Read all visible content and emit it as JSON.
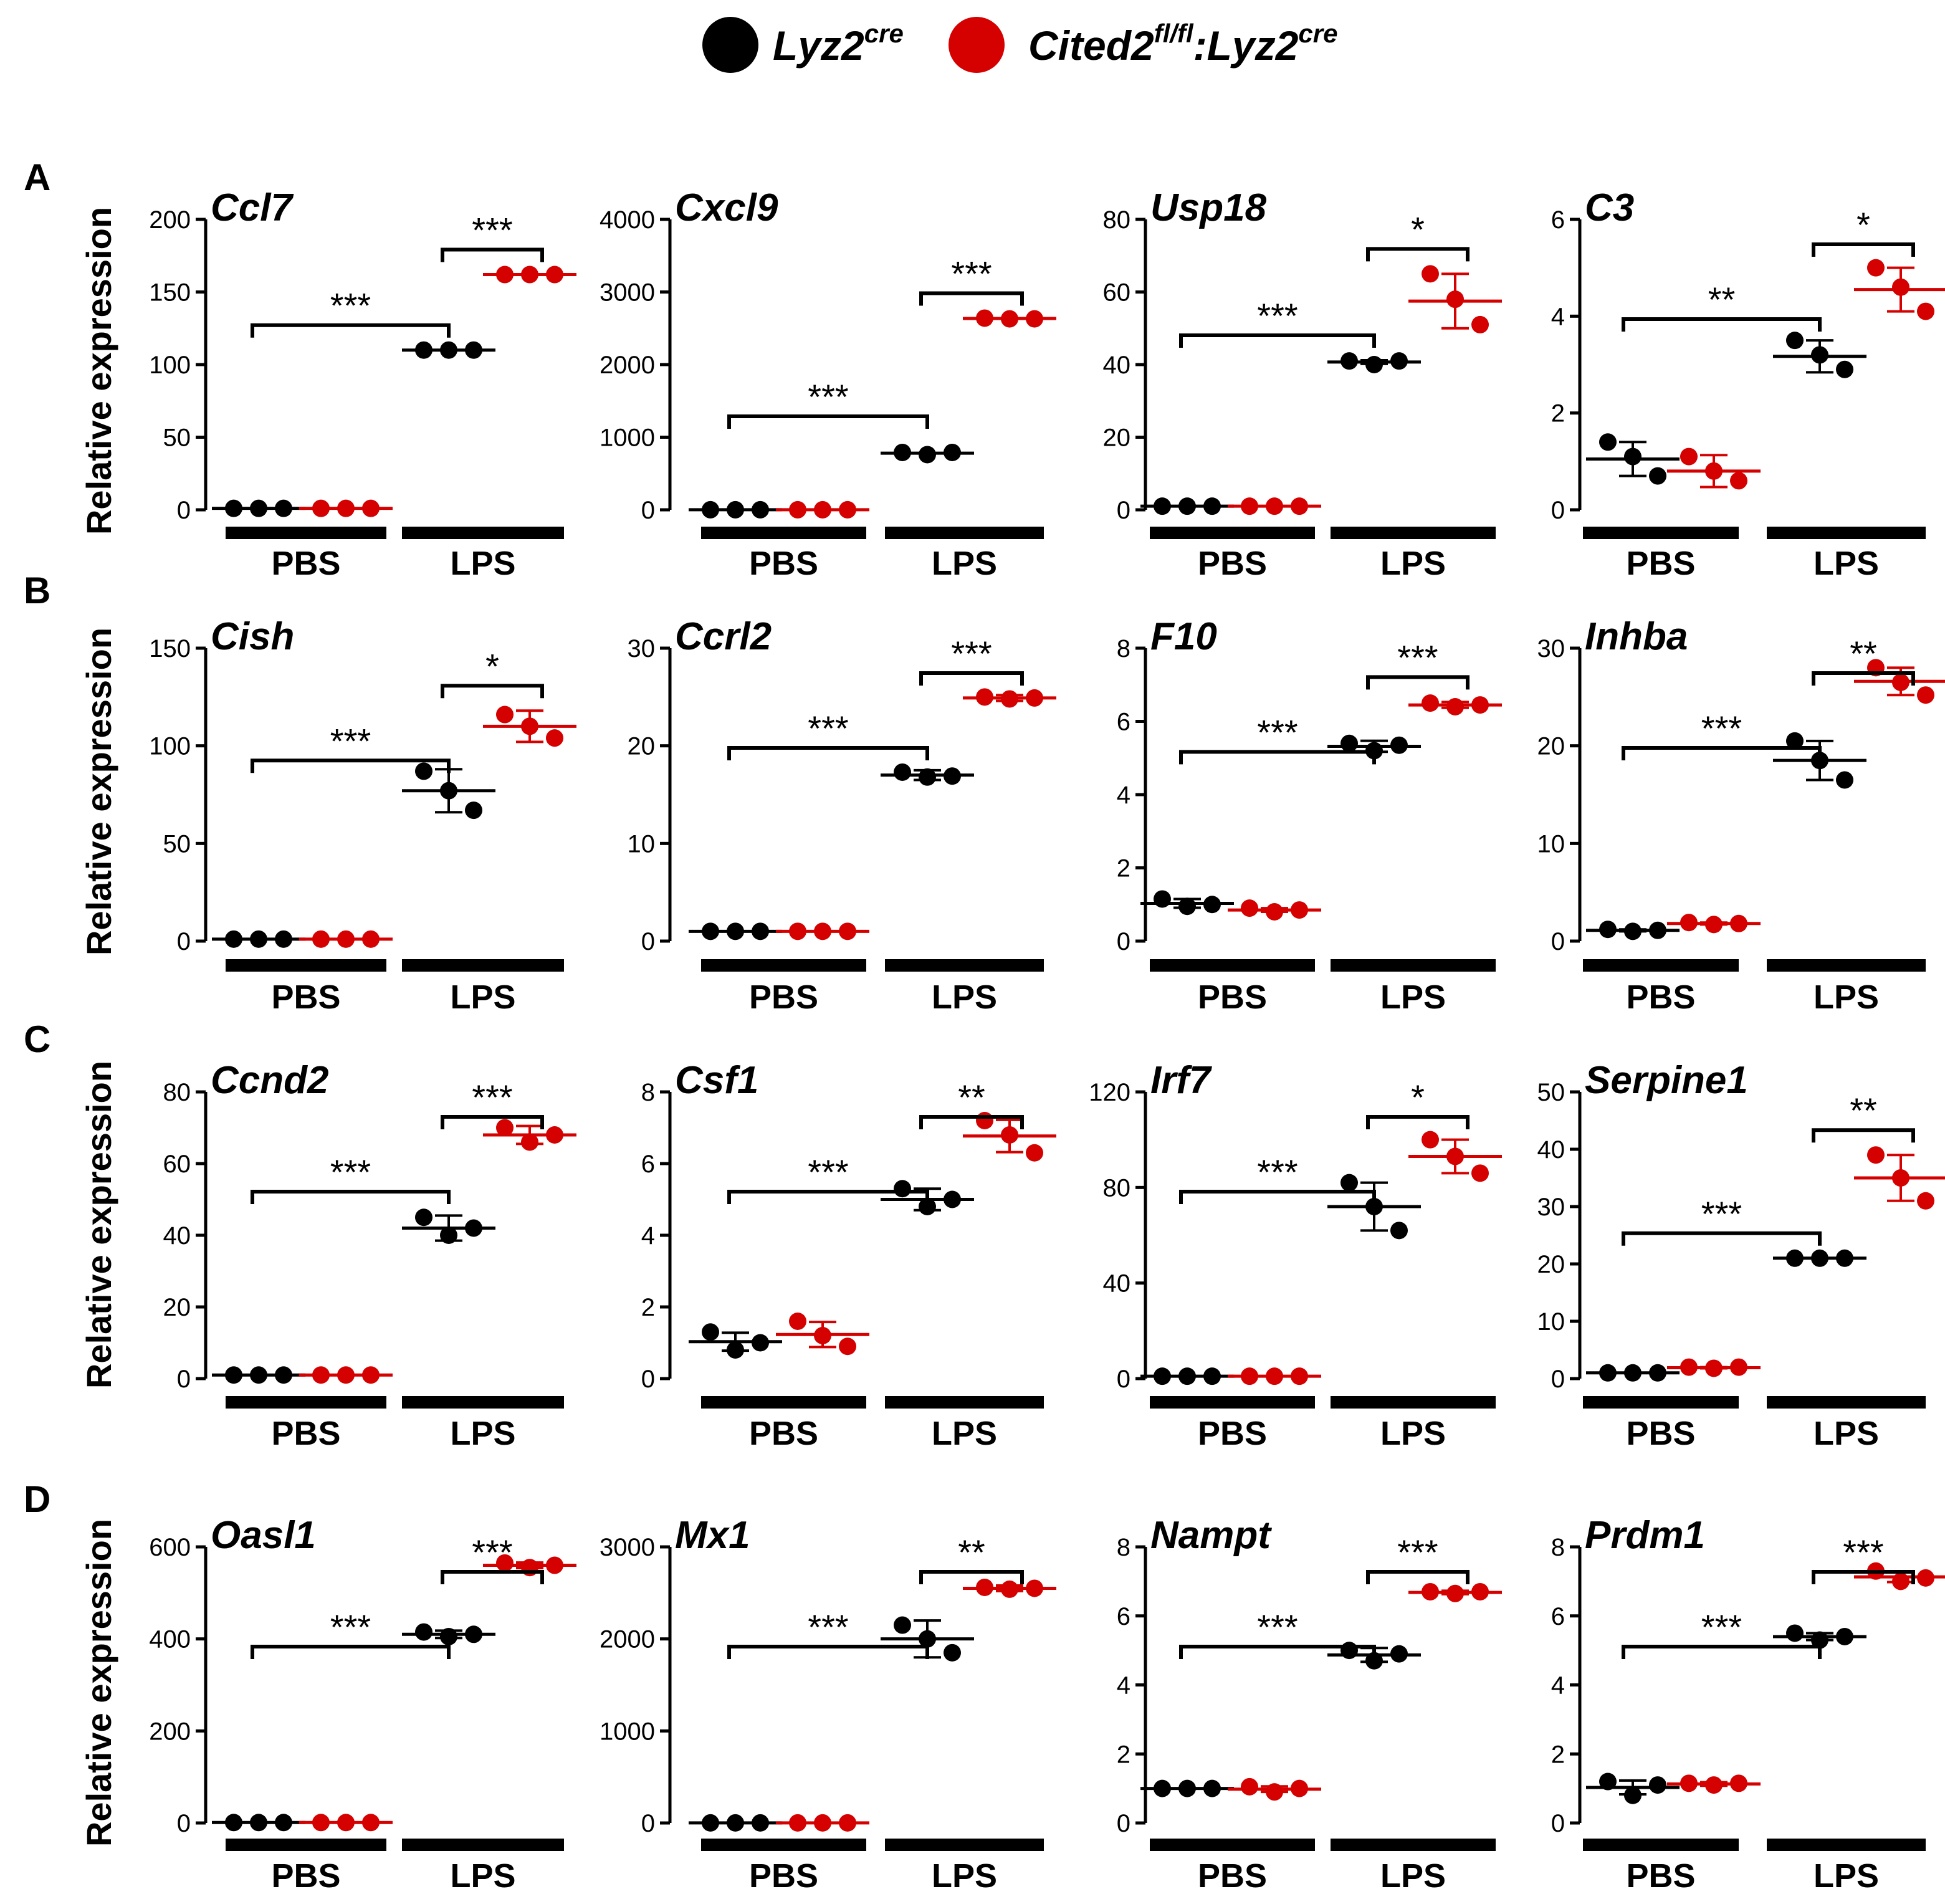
{
  "colors": {
    "wt": "#000000",
    "ko": "#d50000"
  },
  "legend": {
    "entries": [
      {
        "group": "wt",
        "base": "Lyz2",
        "sup": "cre",
        "suffix": "",
        "suffix_sup": ""
      },
      {
        "group": "ko",
        "base": "Cited2",
        "sup": "fl/fl",
        "suffix": ":Lyz2",
        "suffix_sup": "cre"
      }
    ]
  },
  "y_label": "Relative expression",
  "group_labels": [
    "PBS",
    "LPS"
  ],
  "row_labels": [
    "A",
    "B",
    "C",
    "D"
  ],
  "chart_data": [
    {
      "type": "scatter",
      "gene": "Ccl7",
      "ylim": [
        0,
        200
      ],
      "ticks": [
        0,
        50,
        100,
        150,
        200
      ],
      "points": {
        "PBS_wt": [
          1,
          1,
          1
        ],
        "PBS_ko": [
          1,
          1,
          1
        ],
        "LPS_wt": [
          110,
          110,
          110
        ],
        "LPS_ko": [
          162,
          162,
          162
        ]
      },
      "means": {
        "PBS_wt": 1,
        "PBS_ko": 1,
        "LPS_wt": 110,
        "LPS_ko": 162
      },
      "sd": {
        "PBS_wt": 0,
        "PBS_ko": 0,
        "LPS_wt": 0,
        "LPS_ko": 0
      },
      "sig": {
        "between": "***",
        "within": "***"
      }
    },
    {
      "type": "scatter",
      "gene": "Cxcl9",
      "ylim": [
        0,
        4000
      ],
      "ticks": [
        0,
        1000,
        2000,
        3000,
        4000
      ],
      "points": {
        "PBS_wt": [
          1,
          1,
          1
        ],
        "PBS_ko": [
          1,
          1,
          1
        ],
        "LPS_wt": [
          790,
          760,
          790
        ],
        "LPS_ko": [
          2640,
          2630,
          2630
        ]
      },
      "means": {
        "PBS_wt": 1,
        "PBS_ko": 1,
        "LPS_wt": 780,
        "LPS_ko": 2635
      },
      "sd": {
        "PBS_wt": 0,
        "PBS_ko": 0,
        "LPS_wt": 0,
        "LPS_ko": 0
      },
      "sig": {
        "between": "***",
        "within": "***"
      }
    },
    {
      "type": "scatter",
      "gene": "Usp18",
      "ylim": [
        0,
        80
      ],
      "ticks": [
        0,
        20,
        40,
        60,
        80
      ],
      "points": {
        "PBS_wt": [
          1,
          1,
          1
        ],
        "PBS_ko": [
          1,
          1,
          1
        ],
        "LPS_wt": [
          41,
          40,
          41
        ],
        "LPS_ko": [
          65,
          58,
          51
        ]
      },
      "means": {
        "PBS_wt": 1,
        "PBS_ko": 1,
        "LPS_wt": 40.7,
        "LPS_ko": 57.5
      },
      "sd": {
        "PBS_wt": 0,
        "PBS_ko": 0,
        "LPS_wt": 0.5,
        "LPS_ko": 7.5
      },
      "sig": {
        "between": "***",
        "within": "*"
      }
    },
    {
      "type": "scatter",
      "gene": "C3",
      "ylim": [
        0,
        6
      ],
      "ticks": [
        0,
        2,
        4,
        6
      ],
      "points": {
        "PBS_wt": [
          1.4,
          1.1,
          0.7
        ],
        "PBS_ko": [
          1.1,
          0.8,
          0.6
        ],
        "LPS_wt": [
          3.5,
          3.2,
          2.9
        ],
        "LPS_ko": [
          5.0,
          4.6,
          4.1
        ]
      },
      "means": {
        "PBS_wt": 1.05,
        "PBS_ko": 0.8,
        "LPS_wt": 3.17,
        "LPS_ko": 4.55
      },
      "sd": {
        "PBS_wt": 0.35,
        "PBS_ko": 0.33,
        "LPS_wt": 0.33,
        "LPS_ko": 0.45
      },
      "sig": {
        "between": "**",
        "within": "*"
      }
    },
    {
      "type": "scatter",
      "gene": "Cish",
      "ylim": [
        0,
        150
      ],
      "ticks": [
        0,
        50,
        100,
        150
      ],
      "points": {
        "PBS_wt": [
          1,
          1,
          1
        ],
        "PBS_ko": [
          1,
          1,
          1
        ],
        "LPS_wt": [
          87,
          77,
          67
        ],
        "LPS_ko": [
          116,
          110,
          104
        ]
      },
      "means": {
        "PBS_wt": 1,
        "PBS_ko": 1,
        "LPS_wt": 77,
        "LPS_ko": 110
      },
      "sd": {
        "PBS_wt": 0,
        "PBS_ko": 0,
        "LPS_wt": 11,
        "LPS_ko": 8
      },
      "sig": {
        "between": "***",
        "within": "*"
      }
    },
    {
      "type": "scatter",
      "gene": "Ccrl2",
      "ylim": [
        0,
        30
      ],
      "ticks": [
        0,
        10,
        20,
        30
      ],
      "points": {
        "PBS_wt": [
          1,
          1,
          1
        ],
        "PBS_ko": [
          1,
          1,
          1
        ],
        "LPS_wt": [
          17.3,
          16.8,
          16.9
        ],
        "LPS_ko": [
          25,
          24.8,
          24.9
        ]
      },
      "means": {
        "PBS_wt": 1,
        "PBS_ko": 1,
        "LPS_wt": 17,
        "LPS_ko": 24.9
      },
      "sd": {
        "PBS_wt": 0,
        "PBS_ko": 0,
        "LPS_wt": 0.5,
        "LPS_ko": 0.3
      },
      "sig": {
        "between": "***",
        "within": "***"
      }
    },
    {
      "type": "scatter",
      "gene": "F10",
      "ylim": [
        0,
        8
      ],
      "ticks": [
        0,
        2,
        4,
        6,
        8
      ],
      "points": {
        "PBS_wt": [
          1.15,
          0.95,
          1.0
        ],
        "PBS_ko": [
          0.9,
          0.8,
          0.85
        ],
        "LPS_wt": [
          5.4,
          5.2,
          5.35
        ],
        "LPS_ko": [
          6.5,
          6.4,
          6.45
        ]
      },
      "means": {
        "PBS_wt": 1.03,
        "PBS_ko": 0.85,
        "LPS_wt": 5.32,
        "LPS_ko": 6.45
      },
      "sd": {
        "PBS_wt": 0.12,
        "PBS_ko": 0.05,
        "LPS_wt": 0.15,
        "LPS_ko": 0.08
      },
      "sig": {
        "between": "***",
        "within": "***"
      }
    },
    {
      "type": "scatter",
      "gene": "Inhba",
      "ylim": [
        0,
        30
      ],
      "ticks": [
        0,
        10,
        20,
        30
      ],
      "points": {
        "PBS_wt": [
          1.2,
          1.0,
          1.1
        ],
        "PBS_ko": [
          1.9,
          1.7,
          1.8
        ],
        "LPS_wt": [
          20.5,
          18.5,
          16.5
        ],
        "LPS_ko": [
          28,
          26.5,
          25.2
        ]
      },
      "means": {
        "PBS_wt": 1.1,
        "PBS_ko": 1.8,
        "LPS_wt": 18.5,
        "LPS_ko": 26.6
      },
      "sd": {
        "PBS_wt": 0.1,
        "PBS_ko": 0.1,
        "LPS_wt": 2,
        "LPS_ko": 1.4
      },
      "sig": {
        "between": "***",
        "within": "**"
      }
    },
    {
      "type": "scatter",
      "gene": "Ccnd2",
      "ylim": [
        0,
        80
      ],
      "ticks": [
        0,
        20,
        40,
        60,
        80
      ],
      "points": {
        "PBS_wt": [
          1,
          1,
          1
        ],
        "PBS_ko": [
          1,
          1,
          1
        ],
        "LPS_wt": [
          45,
          40,
          42
        ],
        "LPS_ko": [
          70,
          66,
          68
        ]
      },
      "means": {
        "PBS_wt": 1,
        "PBS_ko": 1,
        "LPS_wt": 42,
        "LPS_ko": 68
      },
      "sd": {
        "PBS_wt": 0,
        "PBS_ko": 0,
        "LPS_wt": 3.5,
        "LPS_ko": 2.5
      },
      "sig": {
        "between": "***",
        "within": "***"
      }
    },
    {
      "type": "scatter",
      "gene": "Csf1",
      "ylim": [
        0,
        8
      ],
      "ticks": [
        0,
        2,
        4,
        6,
        8
      ],
      "points": {
        "PBS_wt": [
          1.3,
          0.8,
          1.0
        ],
        "PBS_ko": [
          1.6,
          1.2,
          0.9
        ],
        "LPS_wt": [
          5.3,
          4.8,
          5.0
        ],
        "LPS_ko": [
          7.2,
          6.8,
          6.3
        ]
      },
      "means": {
        "PBS_wt": 1.03,
        "PBS_ko": 1.23,
        "LPS_wt": 5.0,
        "LPS_ko": 6.77
      },
      "sd": {
        "PBS_wt": 0.25,
        "PBS_ko": 0.35,
        "LPS_wt": 0.3,
        "LPS_ko": 0.45
      },
      "sig": {
        "between": "***",
        "within": "**"
      }
    },
    {
      "type": "scatter",
      "gene": "Irf7",
      "ylim": [
        0,
        120
      ],
      "ticks": [
        0,
        40,
        80,
        120
      ],
      "points": {
        "PBS_wt": [
          1,
          1,
          1
        ],
        "PBS_ko": [
          1,
          1,
          1
        ],
        "LPS_wt": [
          82,
          72,
          62
        ],
        "LPS_ko": [
          100,
          93,
          86
        ]
      },
      "means": {
        "PBS_wt": 1,
        "PBS_ko": 1,
        "LPS_wt": 72,
        "LPS_ko": 93
      },
      "sd": {
        "PBS_wt": 0,
        "PBS_ko": 0,
        "LPS_wt": 10,
        "LPS_ko": 7
      },
      "sig": {
        "between": "***",
        "within": "*"
      }
    },
    {
      "type": "scatter",
      "gene": "Serpine1",
      "ylim": [
        0,
        50
      ],
      "ticks": [
        0,
        10,
        20,
        30,
        40,
        50
      ],
      "points": {
        "PBS_wt": [
          1,
          1,
          1
        ],
        "PBS_ko": [
          2,
          1.8,
          2
        ],
        "LPS_wt": [
          21,
          21,
          21
        ],
        "LPS_ko": [
          39,
          35,
          31
        ]
      },
      "means": {
        "PBS_wt": 1,
        "PBS_ko": 1.9,
        "LPS_wt": 21,
        "LPS_ko": 35
      },
      "sd": {
        "PBS_wt": 0,
        "PBS_ko": 0.1,
        "LPS_wt": 0,
        "LPS_ko": 4
      },
      "sig": {
        "between": "***",
        "within": "**"
      }
    },
    {
      "type": "scatter",
      "gene": "Oasl1",
      "ylim": [
        0,
        600
      ],
      "ticks": [
        0,
        200,
        400,
        600
      ],
      "points": {
        "PBS_wt": [
          1,
          1,
          1
        ],
        "PBS_ko": [
          1,
          1,
          1
        ],
        "LPS_wt": [
          415,
          405,
          410
        ],
        "LPS_ko": [
          565,
          555,
          560
        ]
      },
      "means": {
        "PBS_wt": 1,
        "PBS_ko": 1,
        "LPS_wt": 410,
        "LPS_ko": 560
      },
      "sd": {
        "PBS_wt": 0,
        "PBS_ko": 0,
        "LPS_wt": 8,
        "LPS_ko": 6
      },
      "sig": {
        "between": "***",
        "within": "***"
      }
    },
    {
      "type": "scatter",
      "gene": "Mx1",
      "ylim": [
        0,
        3000
      ],
      "ticks": [
        0,
        1000,
        2000,
        3000
      ],
      "points": {
        "PBS_wt": [
          1,
          1,
          1
        ],
        "PBS_ko": [
          1,
          1,
          1
        ],
        "LPS_wt": [
          2150,
          2000,
          1850
        ],
        "LPS_ko": [
          2560,
          2540,
          2550
        ]
      },
      "means": {
        "PBS_wt": 1,
        "PBS_ko": 1,
        "LPS_wt": 2000,
        "LPS_ko": 2550
      },
      "sd": {
        "PBS_wt": 0,
        "PBS_ko": 0,
        "LPS_wt": 200,
        "LPS_ko": 30
      },
      "sig": {
        "between": "***",
        "within": "**"
      }
    },
    {
      "type": "scatter",
      "gene": "Nampt",
      "ylim": [
        0,
        8
      ],
      "ticks": [
        0,
        2,
        4,
        6,
        8
      ],
      "points": {
        "PBS_wt": [
          1.0,
          1.0,
          1.0
        ],
        "PBS_ko": [
          1.05,
          0.9,
          1.0
        ],
        "LPS_wt": [
          5.0,
          4.7,
          4.9
        ],
        "LPS_ko": [
          6.7,
          6.65,
          6.7
        ]
      },
      "means": {
        "PBS_wt": 1.0,
        "PBS_ko": 0.98,
        "LPS_wt": 4.87,
        "LPS_ko": 6.68
      },
      "sd": {
        "PBS_wt": 0,
        "PBS_ko": 0.08,
        "LPS_wt": 0.2,
        "LPS_ko": 0.05
      },
      "sig": {
        "between": "***",
        "within": "***"
      }
    },
    {
      "type": "scatter",
      "gene": "Prdm1",
      "ylim": [
        0,
        8
      ],
      "ticks": [
        0,
        2,
        4,
        6,
        8
      ],
      "points": {
        "PBS_wt": [
          1.2,
          0.8,
          1.1
        ],
        "PBS_ko": [
          1.15,
          1.1,
          1.15
        ],
        "LPS_wt": [
          5.5,
          5.3,
          5.4
        ],
        "LPS_ko": [
          7.3,
          7.0,
          7.1
        ]
      },
      "means": {
        "PBS_wt": 1.03,
        "PBS_ko": 1.13,
        "LPS_wt": 5.4,
        "LPS_ko": 7.13
      },
      "sd": {
        "PBS_wt": 0.2,
        "PBS_ko": 0.05,
        "LPS_wt": 0.1,
        "LPS_ko": 0.15
      },
      "sig": {
        "between": "***",
        "within": "***"
      }
    }
  ]
}
